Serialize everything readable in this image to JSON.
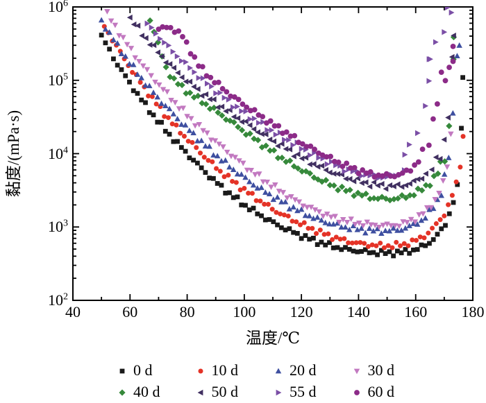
{
  "chart_data": {
    "type": "scatter",
    "title": "",
    "xlabel": "温度/℃",
    "ylabel": "黏度/(mPa·s)",
    "xlim": [
      40,
      180
    ],
    "x_major_ticks": [
      40,
      60,
      80,
      100,
      120,
      140,
      160,
      180
    ],
    "x_minor_step": 10,
    "ylog": true,
    "ylim": [
      100,
      1000000
    ],
    "y_tick_base": "10",
    "y_tick_exponents": [
      2,
      3,
      4,
      5,
      6
    ],
    "grid": false,
    "legend_position": "bottom",
    "frame_color": "#000000",
    "series": [
      {
        "name": "0 d",
        "marker": "square",
        "color": "#1a1a1a",
        "seed": 1,
        "step": 1.4,
        "jitter": 0.03,
        "anchors": [
          [
            50,
            400000
          ],
          [
            55,
            180000
          ],
          [
            60,
            90000
          ],
          [
            65,
            48000
          ],
          [
            70,
            27000
          ],
          [
            75,
            16000
          ],
          [
            80,
            10000
          ],
          [
            85,
            6300
          ],
          [
            90,
            4100
          ],
          [
            95,
            2800
          ],
          [
            100,
            2000
          ],
          [
            105,
            1500
          ],
          [
            110,
            1150
          ],
          [
            115,
            920
          ],
          [
            120,
            760
          ],
          [
            125,
            640
          ],
          [
            130,
            560
          ],
          [
            135,
            500
          ],
          [
            140,
            470
          ],
          [
            145,
            450
          ],
          [
            150,
            440
          ],
          [
            155,
            450
          ],
          [
            160,
            490
          ],
          [
            164,
            580
          ],
          [
            167,
            730
          ],
          [
            170,
            1000
          ],
          [
            172,
            1600
          ],
          [
            174,
            2800
          ],
          [
            175.5,
            4800
          ],
          [
            176.5,
            110000
          ]
        ]
      },
      {
        "name": "10 d",
        "marker": "circle",
        "color": "#e43327",
        "seed": 2,
        "step": 1.4,
        "jitter": 0.03,
        "anchors": [
          [
            51,
            550000
          ],
          [
            56,
            260000
          ],
          [
            61,
            130000
          ],
          [
            66,
            70000
          ],
          [
            71,
            39000
          ],
          [
            76,
            23000
          ],
          [
            81,
            14500
          ],
          [
            86,
            9200
          ],
          [
            91,
            6000
          ],
          [
            96,
            4200
          ],
          [
            101,
            3000
          ],
          [
            106,
            2200
          ],
          [
            111,
            1650
          ],
          [
            116,
            1300
          ],
          [
            121,
            1050
          ],
          [
            126,
            860
          ],
          [
            131,
            730
          ],
          [
            136,
            640
          ],
          [
            141,
            590
          ],
          [
            146,
            560
          ],
          [
            151,
            550
          ],
          [
            156,
            580
          ],
          [
            160,
            650
          ],
          [
            164,
            800
          ],
          [
            167,
            1050
          ],
          [
            170,
            1500
          ],
          [
            172,
            2200
          ],
          [
            174,
            3600
          ],
          [
            175.5,
            6500
          ],
          [
            176.6,
            17000
          ]
        ]
      },
      {
        "name": "20 d",
        "marker": "triangle-up",
        "color": "#3e4fa0",
        "seed": 3,
        "step": 1.4,
        "jitter": 0.03,
        "tail": {
          "t": 170,
          "jitter": 0.05,
          "xjitter": 0.5
        },
        "anchors": [
          [
            50,
            650000
          ],
          [
            55,
            320000
          ],
          [
            60,
            170000
          ],
          [
            65,
            95000
          ],
          [
            70,
            56000
          ],
          [
            75,
            35000
          ],
          [
            80,
            22000
          ],
          [
            85,
            14500
          ],
          [
            90,
            9600
          ],
          [
            95,
            6600
          ],
          [
            100,
            4700
          ],
          [
            105,
            3400
          ],
          [
            110,
            2600
          ],
          [
            115,
            2000
          ],
          [
            120,
            1600
          ],
          [
            125,
            1300
          ],
          [
            130,
            1120
          ],
          [
            135,
            1000
          ],
          [
            140,
            930
          ],
          [
            145,
            890
          ],
          [
            150,
            880
          ],
          [
            155,
            930
          ],
          [
            159,
            1050
          ],
          [
            163,
            1300
          ],
          [
            166,
            1800
          ],
          [
            169,
            2900
          ],
          [
            171,
            5500
          ],
          [
            172.5,
            14000
          ],
          [
            174,
            90000
          ],
          [
            174.8,
            350000
          ]
        ]
      },
      {
        "name": "30 d",
        "marker": "triangle-down",
        "color": "#c279c0",
        "seed": 4,
        "step": 1.4,
        "jitter": 0.03,
        "anchors": [
          [
            52,
            800000
          ],
          [
            57,
            400000
          ],
          [
            62,
            210000
          ],
          [
            67,
            120000
          ],
          [
            72,
            72000
          ],
          [
            77,
            44000
          ],
          [
            82,
            28000
          ],
          [
            87,
            18500
          ],
          [
            92,
            12500
          ],
          [
            97,
            8600
          ],
          [
            102,
            6000
          ],
          [
            107,
            4300
          ],
          [
            112,
            3200
          ],
          [
            117,
            2400
          ],
          [
            122,
            1900
          ],
          [
            127,
            1550
          ],
          [
            132,
            1300
          ],
          [
            137,
            1180
          ],
          [
            142,
            1100
          ],
          [
            147,
            1050
          ],
          [
            152,
            1050
          ],
          [
            156,
            1120
          ],
          [
            160,
            1300
          ],
          [
            164,
            1700
          ],
          [
            167,
            2400
          ],
          [
            169.5,
            3800
          ],
          [
            171,
            6800
          ],
          [
            172.3,
            19000
          ]
        ]
      },
      {
        "name": "40 d",
        "marker": "diamond",
        "color": "#36893b",
        "seed": 5,
        "step": 1.4,
        "jitter": 0.03,
        "tail": {
          "t": 168,
          "jitter": 0.07,
          "xjitter": 0.8
        },
        "anchors": [
          [
            67,
            680000
          ],
          [
            69,
            400000
          ],
          [
            71,
            220000
          ],
          [
            73,
            135000
          ],
          [
            76,
            95000
          ],
          [
            80,
            70000
          ],
          [
            85,
            52000
          ],
          [
            90,
            38000
          ],
          [
            95,
            28000
          ],
          [
            100,
            20000
          ],
          [
            105,
            14500
          ],
          [
            110,
            10500
          ],
          [
            115,
            7800
          ],
          [
            120,
            6000
          ],
          [
            125,
            4700
          ],
          [
            130,
            3800
          ],
          [
            135,
            3200
          ],
          [
            140,
            2800
          ],
          [
            145,
            2500
          ],
          [
            150,
            2400
          ],
          [
            154,
            2450
          ],
          [
            158,
            2700
          ],
          [
            162,
            3200
          ],
          [
            165,
            4000
          ],
          [
            168,
            5500
          ],
          [
            170,
            8000
          ],
          [
            171.5,
            12000
          ],
          [
            172.5,
            45000
          ],
          [
            173.3,
            170000
          ],
          [
            174,
            400000
          ]
        ]
      },
      {
        "name": "50 d",
        "marker": "triangle-left",
        "color": "#413061",
        "seed": 6,
        "step": 1.4,
        "jitter": 0.03,
        "tail": {
          "t": 165,
          "jitter": 0.07,
          "xjitter": 0.8
        },
        "anchors": [
          [
            60,
            700000
          ],
          [
            64,
            440000
          ],
          [
            68,
            290000
          ],
          [
            72,
            195000
          ],
          [
            76,
            135000
          ],
          [
            80,
            97000
          ],
          [
            85,
            68000
          ],
          [
            90,
            49000
          ],
          [
            95,
            36000
          ],
          [
            100,
            27000
          ],
          [
            105,
            20000
          ],
          [
            110,
            15000
          ],
          [
            115,
            11500
          ],
          [
            120,
            8800
          ],
          [
            125,
            7000
          ],
          [
            130,
            5700
          ],
          [
            135,
            4800
          ],
          [
            140,
            4200
          ],
          [
            145,
            3800
          ],
          [
            150,
            3600
          ],
          [
            154,
            3600
          ],
          [
            158,
            3900
          ],
          [
            161,
            4400
          ],
          [
            164,
            5500
          ],
          [
            166.5,
            7500
          ],
          [
            168.5,
            11000
          ],
          [
            170,
            22000
          ],
          [
            171,
            50000
          ],
          [
            171.8,
            130000
          ],
          [
            172.6,
            360000
          ]
        ]
      },
      {
        "name": "55 d",
        "marker": "triangle-right",
        "color": "#7b4fa6",
        "seed": 7,
        "step": 1.5,
        "jitter": 0.03,
        "tail": {
          "t": 156,
          "jitter": 0.15,
          "xjitter": 1.5
        },
        "anchors": [
          [
            66,
            580000
          ],
          [
            70,
            400000
          ],
          [
            74,
            270000
          ],
          [
            78,
            190000
          ],
          [
            82,
            135000
          ],
          [
            86,
            97000
          ],
          [
            90,
            72000
          ],
          [
            95,
            50000
          ],
          [
            100,
            36000
          ],
          [
            105,
            27000
          ],
          [
            110,
            20000
          ],
          [
            115,
            15500
          ],
          [
            120,
            12000
          ],
          [
            125,
            9300
          ],
          [
            130,
            7500
          ],
          [
            135,
            6200
          ],
          [
            140,
            5400
          ],
          [
            144,
            5000
          ],
          [
            148,
            4800
          ],
          [
            152,
            4900
          ],
          [
            155,
            5400
          ],
          [
            157,
            7000
          ],
          [
            159,
            12000
          ],
          [
            161,
            30000
          ],
          [
            162.5,
            60000
          ],
          [
            164,
            110000
          ],
          [
            165.5,
            180000
          ],
          [
            167,
            280000
          ],
          [
            168.5,
            400000
          ],
          [
            170,
            520000
          ],
          [
            171.5,
            640000
          ]
        ]
      },
      {
        "name": "60 d",
        "marker": "circle-big",
        "color": "#8c2b88",
        "seed": 8,
        "step": 1.4,
        "jitter": 0.03,
        "tail": {
          "t": 163,
          "jitter": 0.1,
          "xjitter": 1.0
        },
        "anchors": [
          [
            70,
            500000
          ],
          [
            74,
            530000
          ],
          [
            78,
            420000
          ],
          [
            81,
            260000
          ],
          [
            84,
            160000
          ],
          [
            88,
            110000
          ],
          [
            92,
            80000
          ],
          [
            96,
            60000
          ],
          [
            100,
            46000
          ],
          [
            105,
            34000
          ],
          [
            110,
            25000
          ],
          [
            115,
            19000
          ],
          [
            120,
            14000
          ],
          [
            125,
            11000
          ],
          [
            130,
            8600
          ],
          [
            135,
            7000
          ],
          [
            140,
            5900
          ],
          [
            144,
            5300
          ],
          [
            148,
            5000
          ],
          [
            152,
            5000
          ],
          [
            156,
            5400
          ],
          [
            158,
            6000
          ],
          [
            161,
            8000
          ],
          [
            163.5,
            13000
          ],
          [
            165.5,
            32000
          ],
          [
            167,
            80000
          ],
          [
            168.5,
            110000
          ],
          [
            170,
            100000
          ],
          [
            171,
            140000
          ],
          [
            172,
            220000
          ],
          [
            173,
            350000
          ]
        ]
      }
    ]
  }
}
